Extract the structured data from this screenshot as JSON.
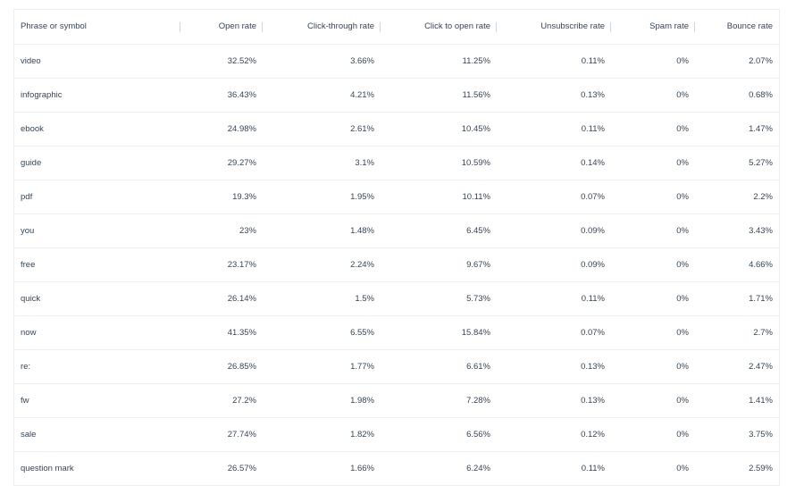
{
  "table": {
    "columns": [
      "Phrase or symbol",
      "Open rate",
      "Click-through rate",
      "Click to open rate",
      "Unsubscribe rate",
      "Spam rate",
      "Bounce rate"
    ],
    "rows": [
      {
        "phrase": "video",
        "open": "32.52%",
        "ctr": "3.66%",
        "cto": "11.25%",
        "unsub": "0.11%",
        "spam": "0%",
        "bounce": "2.07%"
      },
      {
        "phrase": "infographic",
        "open": "36.43%",
        "ctr": "4.21%",
        "cto": "11.56%",
        "unsub": "0.13%",
        "spam": "0%",
        "bounce": "0.68%"
      },
      {
        "phrase": "ebook",
        "open": "24.98%",
        "ctr": "2.61%",
        "cto": "10.45%",
        "unsub": "0.11%",
        "spam": "0%",
        "bounce": "1.47%"
      },
      {
        "phrase": "guide",
        "open": "29.27%",
        "ctr": "3.1%",
        "cto": "10.59%",
        "unsub": "0.14%",
        "spam": "0%",
        "bounce": "5.27%"
      },
      {
        "phrase": "pdf",
        "open": "19.3%",
        "ctr": "1.95%",
        "cto": "10.11%",
        "unsub": "0.07%",
        "spam": "0%",
        "bounce": "2.2%"
      },
      {
        "phrase": "you",
        "open": "23%",
        "ctr": "1.48%",
        "cto": "6.45%",
        "unsub": "0.09%",
        "spam": "0%",
        "bounce": "3.43%"
      },
      {
        "phrase": "free",
        "open": "23.17%",
        "ctr": "2.24%",
        "cto": "9.67%",
        "unsub": "0.09%",
        "spam": "0%",
        "bounce": "4.66%"
      },
      {
        "phrase": "quick",
        "open": "26.14%",
        "ctr": "1.5%",
        "cto": "5.73%",
        "unsub": "0.11%",
        "spam": "0%",
        "bounce": "1.71%"
      },
      {
        "phrase": "now",
        "open": "41.35%",
        "ctr": "6.55%",
        "cto": "15.84%",
        "unsub": "0.07%",
        "spam": "0%",
        "bounce": "2.7%"
      },
      {
        "phrase": "re:",
        "open": "26.85%",
        "ctr": "1.77%",
        "cto": "6.61%",
        "unsub": "0.13%",
        "spam": "0%",
        "bounce": "2.47%"
      },
      {
        "phrase": "fw",
        "open": "27.2%",
        "ctr": "1.98%",
        "cto": "7.28%",
        "unsub": "0.13%",
        "spam": "0%",
        "bounce": "1.41%"
      },
      {
        "phrase": "sale",
        "open": "27.74%",
        "ctr": "1.82%",
        "cto": "6.56%",
        "unsub": "0.12%",
        "spam": "0%",
        "bounce": "3.75%"
      },
      {
        "phrase": "question mark",
        "open": "26.57%",
        "ctr": "1.66%",
        "cto": "6.24%",
        "unsub": "0.11%",
        "spam": "0%",
        "bounce": "2.59%"
      }
    ]
  }
}
